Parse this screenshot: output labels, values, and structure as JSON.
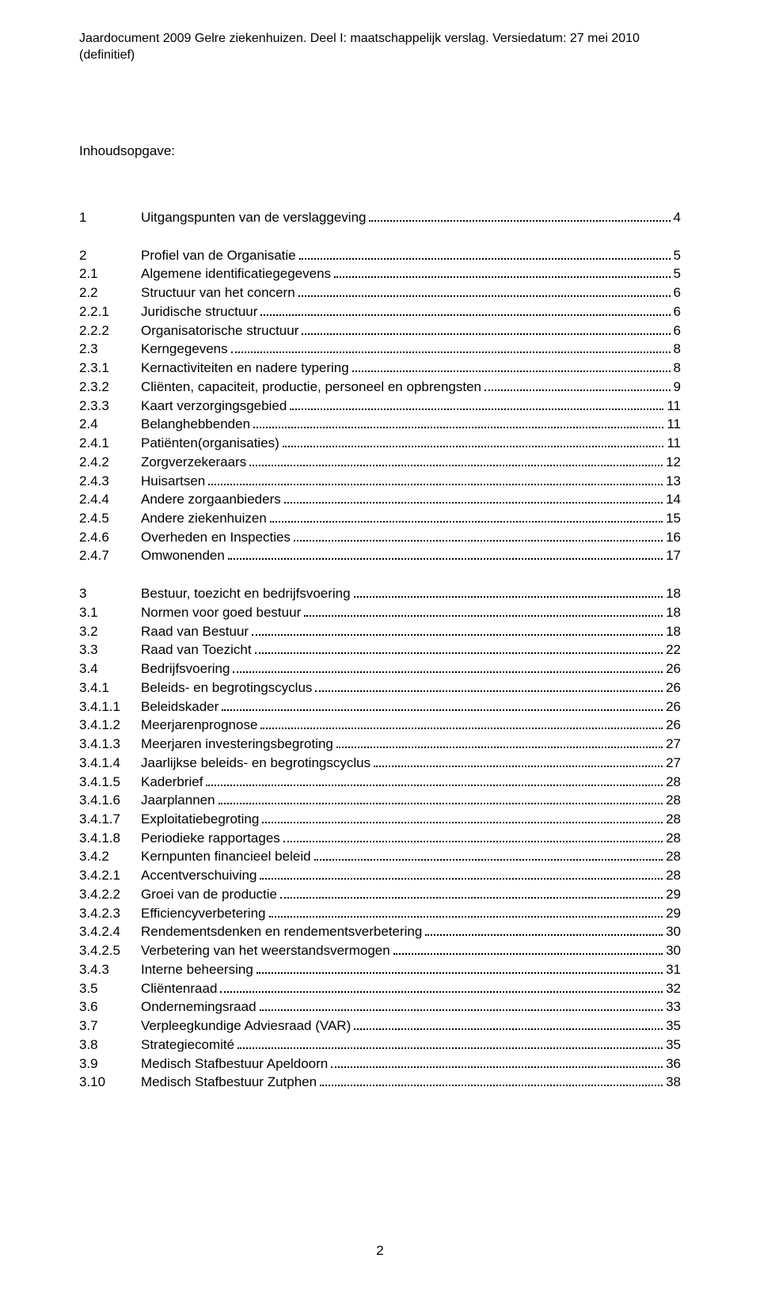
{
  "docHeader": "Jaardocument 2009 Gelre ziekenhuizen. Deel I: maatschappelijk verslag. Versiedatum: 27 mei 2010 (definitief)",
  "tocTitle": "Inhoudsopgave:",
  "pageNumber": "2",
  "blocks": [
    [
      {
        "num": "1",
        "label": "Uitgangspunten van de verslaggeving",
        "page": "4"
      }
    ],
    [
      {
        "num": "2",
        "label": "Profiel van de Organisatie",
        "page": "5"
      },
      {
        "num": "2.1",
        "label": "Algemene identificatiegegevens",
        "page": "5"
      },
      {
        "num": "2.2",
        "label": "Structuur van het concern",
        "page": "6"
      },
      {
        "num": "2.2.1",
        "label": "Juridische structuur",
        "page": "6"
      },
      {
        "num": "2.2.2",
        "label": "Organisatorische structuur",
        "page": "6"
      },
      {
        "num": "2.3",
        "label": "Kerngegevens",
        "page": "8"
      },
      {
        "num": "2.3.1",
        "label": "Kernactiviteiten en nadere typering",
        "page": "8"
      },
      {
        "num": "2.3.2",
        "label": "Cliënten, capaciteit, productie, personeel en opbrengsten",
        "page": "9"
      },
      {
        "num": "2.3.3",
        "label": "Kaart verzorgingsgebied",
        "page": "11"
      },
      {
        "num": "2.4",
        "label": "Belanghebbenden",
        "page": "11"
      },
      {
        "num": "2.4.1",
        "label": "Patiënten(organisaties)",
        "page": "11"
      },
      {
        "num": "2.4.2",
        "label": "Zorgverzekeraars",
        "page": "12"
      },
      {
        "num": "2.4.3",
        "label": "Huisartsen",
        "page": "13"
      },
      {
        "num": "2.4.4",
        "label": "Andere zorgaanbieders",
        "page": "14"
      },
      {
        "num": "2.4.5",
        "label": "Andere ziekenhuizen",
        "page": "15"
      },
      {
        "num": "2.4.6",
        "label": "Overheden en Inspecties",
        "page": "16"
      },
      {
        "num": "2.4.7",
        "label": "Omwonenden",
        "page": "17"
      }
    ],
    [
      {
        "num": "3",
        "label": "Bestuur, toezicht en bedrijfsvoering",
        "page": "18"
      },
      {
        "num": "3.1",
        "label": "Normen voor goed bestuur",
        "page": "18"
      },
      {
        "num": "3.2",
        "label": "Raad van Bestuur",
        "page": "18"
      },
      {
        "num": "3.3",
        "label": "Raad van Toezicht",
        "page": "22"
      },
      {
        "num": "3.4",
        "label": "Bedrijfsvoering",
        "page": "26"
      },
      {
        "num": "3.4.1",
        "label": "Beleids- en begrotingscyclus",
        "page": "26"
      },
      {
        "num": "3.4.1.1",
        "label": "Beleidskader",
        "page": "26"
      },
      {
        "num": "3.4.1.2",
        "label": "Meerjarenprognose",
        "page": "26"
      },
      {
        "num": "3.4.1.3",
        "label": "Meerjaren investeringsbegroting",
        "page": "27"
      },
      {
        "num": "3.4.1.4",
        "label": "Jaarlijkse beleids- en begrotingscyclus",
        "page": "27"
      },
      {
        "num": "3.4.1.5",
        "label": "Kaderbrief",
        "page": "28"
      },
      {
        "num": "3.4.1.6",
        "label": "Jaarplannen",
        "page": "28"
      },
      {
        "num": "3.4.1.7",
        "label": "Exploitatiebegroting",
        "page": "28"
      },
      {
        "num": "3.4.1.8",
        "label": "Periodieke rapportages",
        "page": "28"
      },
      {
        "num": "3.4.2",
        "label": "Kernpunten financieel beleid",
        "page": "28"
      },
      {
        "num": "3.4.2.1",
        "label": "Accentverschuiving",
        "page": "28"
      },
      {
        "num": "3.4.2.2",
        "label": "Groei van de productie",
        "page": "29"
      },
      {
        "num": "3.4.2.3",
        "label": "Efficiencyverbetering",
        "page": "29"
      },
      {
        "num": "3.4.2.4",
        "label": "Rendementsdenken en rendementsverbetering",
        "page": "30"
      },
      {
        "num": "3.4.2.5",
        "label": "Verbetering van het weerstandsvermogen",
        "page": "30"
      },
      {
        "num": "3.4.3",
        "label": "Interne beheersing",
        "page": "31"
      },
      {
        "num": "3.5",
        "label": "Cliëntenraad",
        "page": "32"
      },
      {
        "num": "3.6",
        "label": "Ondernemingsraad",
        "page": "33"
      },
      {
        "num": "3.7",
        "label": "Verpleegkundige Adviesraad (VAR)",
        "page": "35"
      },
      {
        "num": "3.8",
        "label": "Strategiecomité",
        "page": "35"
      },
      {
        "num": "3.9",
        "label": "Medisch Stafbestuur Apeldoorn",
        "page": "36"
      },
      {
        "num": "3.10",
        "label": "Medisch Stafbestuur Zutphen",
        "page": "38"
      }
    ]
  ]
}
